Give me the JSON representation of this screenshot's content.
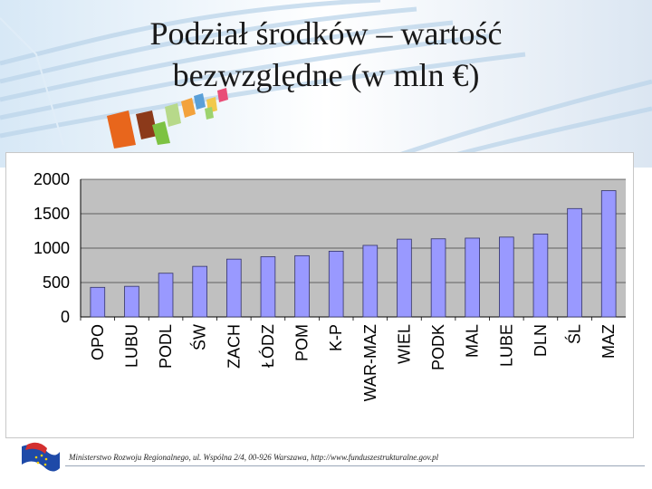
{
  "slide": {
    "title_line1": "Podział środków – wartość",
    "title_line2": "bezwzględne (w mln €)",
    "footer": "Ministerstwo Rozwoju Regionalnego, ul. Wspólna 2/4, 00-926 Warszawa, http://www.funduszestrukturalne.gov.pl"
  },
  "chart_data": {
    "type": "bar",
    "title": "",
    "xlabel": "",
    "ylabel": "",
    "ylim": [
      0,
      2000
    ],
    "yticks": [
      0,
      500,
      1000,
      1500,
      2000
    ],
    "grid": true,
    "legend": "none",
    "categories": [
      "OPO",
      "LUBU",
      "PODL",
      "ŚW",
      "ZACH",
      "ŁÓDZ",
      "POM",
      "K-P",
      "WAR-MAZ",
      "WIEL",
      "PODK",
      "MAL",
      "LUBE",
      "DLN",
      "ŚL",
      "MAZ"
    ],
    "series": [
      {
        "values": [
          430,
          445,
          635,
          735,
          840,
          875,
          890,
          955,
          1040,
          1130,
          1135,
          1145,
          1160,
          1205,
          1575,
          1835
        ]
      }
    ],
    "colors": {
      "bar": "#9999ff",
      "bar_edge": "#333366",
      "plot_bg": "#c0c0c0",
      "gridline": "#000000"
    }
  }
}
